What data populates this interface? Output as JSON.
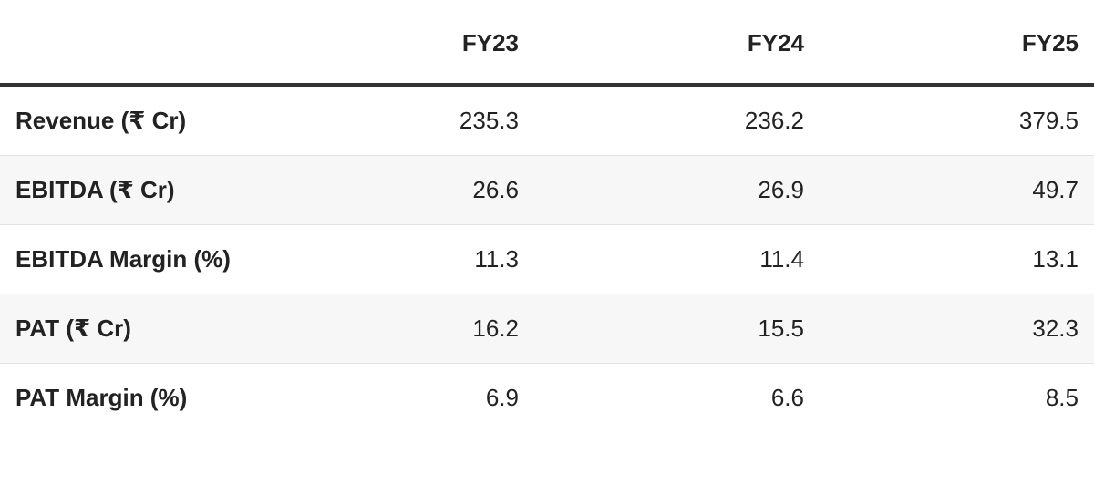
{
  "table": {
    "columns": [
      "FY23",
      "FY24",
      "FY25"
    ],
    "rows": [
      [
        "Revenue (₹ Cr)",
        "235.3",
        "236.2",
        "379.5"
      ],
      [
        "EBITDA (₹ Cr)",
        "26.6",
        "26.9",
        "49.7"
      ],
      [
        "EBITDA Margin (%)",
        "11.3",
        "11.4",
        "13.1"
      ],
      [
        "PAT (₹ Cr)",
        "16.2",
        "15.5",
        "32.3"
      ],
      [
        "PAT Margin (%)",
        "6.9",
        "6.6",
        "8.5"
      ]
    ]
  }
}
